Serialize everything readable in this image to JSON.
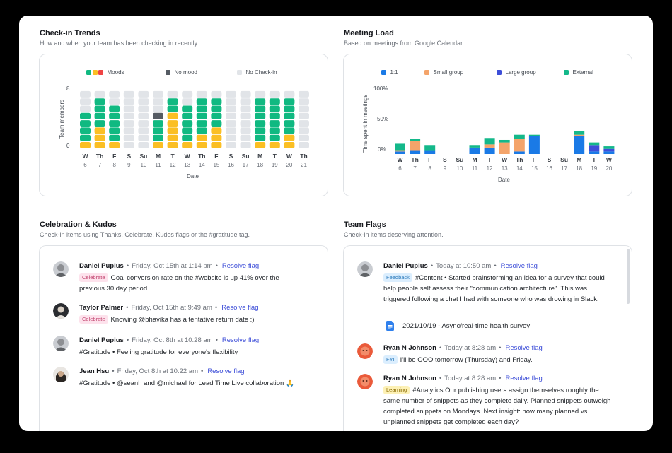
{
  "checkin_trends": {
    "title": "Check-in Trends",
    "subtitle": "How and when your team has been checking in recently.",
    "legend": {
      "moods": "Moods",
      "no_mood": "No mood",
      "no_checkin": "No Check-in"
    },
    "y_label": "Team members",
    "x_label": "Date",
    "y_ticks": [
      "8",
      "0"
    ],
    "colors": {
      "green": "#10b981",
      "yellow": "#fbbf24",
      "red": "#ef4444",
      "dark": "#555b63",
      "empty": "#e1e4e8"
    },
    "days": [
      {
        "dow": "W",
        "day": "6",
        "stack": [
          "y",
          "g",
          "g",
          "g",
          "g",
          "e",
          "e",
          "e"
        ]
      },
      {
        "dow": "Th",
        "day": "7",
        "stack": [
          "y",
          "y",
          "y",
          "g",
          "g",
          "g",
          "g",
          "e"
        ]
      },
      {
        "dow": "F",
        "day": "8",
        "stack": [
          "y",
          "g",
          "g",
          "g",
          "g",
          "g",
          "e",
          "e"
        ]
      },
      {
        "dow": "S",
        "day": "9",
        "stack": [
          "e",
          "e",
          "e",
          "e",
          "e",
          "e",
          "e",
          "e"
        ]
      },
      {
        "dow": "Su",
        "day": "10",
        "stack": [
          "e",
          "e",
          "e",
          "e",
          "e",
          "e",
          "e",
          "e"
        ]
      },
      {
        "dow": "M",
        "day": "11",
        "stack": [
          "y",
          "g",
          "g",
          "g",
          "d",
          "e",
          "e",
          "e"
        ]
      },
      {
        "dow": "T",
        "day": "12",
        "stack": [
          "y",
          "y",
          "y",
          "y",
          "y",
          "g",
          "g",
          "e"
        ]
      },
      {
        "dow": "W",
        "day": "13",
        "stack": [
          "y",
          "g",
          "g",
          "g",
          "g",
          "g",
          "e",
          "e"
        ]
      },
      {
        "dow": "Th",
        "day": "14",
        "stack": [
          "y",
          "y",
          "g",
          "g",
          "g",
          "g",
          "g",
          "e"
        ]
      },
      {
        "dow": "F",
        "day": "15",
        "stack": [
          "y",
          "y",
          "y",
          "g",
          "g",
          "g",
          "g",
          "e"
        ]
      },
      {
        "dow": "S",
        "day": "16",
        "stack": [
          "e",
          "e",
          "e",
          "e",
          "e",
          "e",
          "e",
          "e"
        ]
      },
      {
        "dow": "Su",
        "day": "17",
        "stack": [
          "e",
          "e",
          "e",
          "e",
          "e",
          "e",
          "e",
          "e"
        ]
      },
      {
        "dow": "M",
        "day": "18",
        "stack": [
          "y",
          "g",
          "g",
          "g",
          "g",
          "g",
          "g",
          "e"
        ]
      },
      {
        "dow": "T",
        "day": "19",
        "stack": [
          "y",
          "g",
          "g",
          "g",
          "g",
          "g",
          "g",
          "e"
        ]
      },
      {
        "dow": "W",
        "day": "20",
        "stack": [
          "y",
          "y",
          "g",
          "g",
          "g",
          "g",
          "g",
          "e"
        ]
      },
      {
        "dow": "Th",
        "day": "21",
        "stack": [
          "e",
          "e",
          "e",
          "e",
          "e",
          "e",
          "e",
          "e"
        ]
      }
    ]
  },
  "meeting_load": {
    "title": "Meeting Load",
    "subtitle": "Based on meetings from Google Calendar.",
    "legend": [
      {
        "label": "1:1",
        "color": "#1a7ae6"
      },
      {
        "label": "Small group",
        "color": "#f4a46a"
      },
      {
        "label": "Large group",
        "color": "#3d4ed8"
      },
      {
        "label": "External",
        "color": "#14b88a"
      }
    ],
    "y_label": "Time spent in meetings",
    "x_label": "Date",
    "y_ticks": [
      "100%",
      "50%",
      "0%"
    ],
    "chart_data": {
      "type": "bar",
      "stacked": true,
      "categories": [
        "W 6",
        "Th 7",
        "F 8",
        "S 9",
        "Su 10",
        "M 11",
        "T 12",
        "W 13",
        "Th 14",
        "F 15",
        "S 16",
        "Su 17",
        "M 18",
        "T 19",
        "W 20"
      ],
      "ylim": [
        0,
        100
      ],
      "series": [
        {
          "name": "1:1",
          "values": [
            4,
            6,
            6,
            0,
            0,
            10,
            10,
            0,
            4,
            28,
            0,
            0,
            28,
            4,
            4
          ]
        },
        {
          "name": "Small group",
          "values": [
            2,
            14,
            0,
            0,
            0,
            0,
            5,
            18,
            20,
            0,
            0,
            0,
            2,
            0,
            0
          ]
        },
        {
          "name": "Large group",
          "values": [
            0,
            0,
            0,
            0,
            0,
            0,
            0,
            0,
            0,
            0,
            0,
            0,
            0,
            10,
            4
          ]
        },
        {
          "name": "External",
          "values": [
            10,
            4,
            8,
            0,
            0,
            4,
            10,
            4,
            6,
            2,
            0,
            0,
            6,
            4,
            4
          ]
        }
      ]
    }
  },
  "kudos": {
    "title": "Celebration & Kudos",
    "subtitle": "Check-in items using Thanks, Celebrate, Kudos flags or the #gratitude tag.",
    "resolve_label": "Resolve flag",
    "items": [
      {
        "name": "Daniel Pupius",
        "time": "Friday, Oct 15th at 1:14 pm",
        "tag": "Celebrate",
        "text": "Goal conversion rate on the #website is up 41% over the previous 30 day period."
      },
      {
        "name": "Taylor Palmer",
        "time": "Friday, Oct 15th at 9:49 am",
        "tag": "Celebrate",
        "text": "Knowing @bhavika has a tentative return date :)"
      },
      {
        "name": "Daniel Pupius",
        "time": "Friday, Oct 8th at 10:28 am",
        "tag": "",
        "text": "#Gratitude • Feeling gratitude for everyone's flexibility"
      },
      {
        "name": "Jean Hsu",
        "time": "Friday, Oct 8th at 10:22 am",
        "tag": "",
        "text": "#Gratitude • @seanh and @michael for Lead Time Live collaboration 🙏"
      }
    ]
  },
  "flags": {
    "title": "Team Flags",
    "subtitle": "Check-in items deserving attention.",
    "resolve_label": "Resolve flag",
    "items": [
      {
        "name": "Daniel Pupius",
        "time": "Today at 10:50 am",
        "tag": "Feedback",
        "text": "#Content • Started brainstorming an idea for a survey that could help people self assess their \"communication architecture\". This was triggered following a chat I had with someone who was drowing in Slack.",
        "attachment": "2021/10/19 - Async/real-time health survey"
      },
      {
        "name": "Ryan N Johnson",
        "time": "Today at 8:28 am",
        "tag": "FYI",
        "text": "I'll be OOO tomorrow (Thursday) and Friday."
      },
      {
        "name": "Ryan N Johnson",
        "time": "Today at 8:28 am",
        "tag": "Learning",
        "text": "#Analytics Our publishing users assign themselves roughly the same number of snippets as they complete daily. Planned snippets outweigh completed snippets on Mondays. Next insight: how many planned vs unplanned snippets get completed each day?"
      }
    ]
  }
}
